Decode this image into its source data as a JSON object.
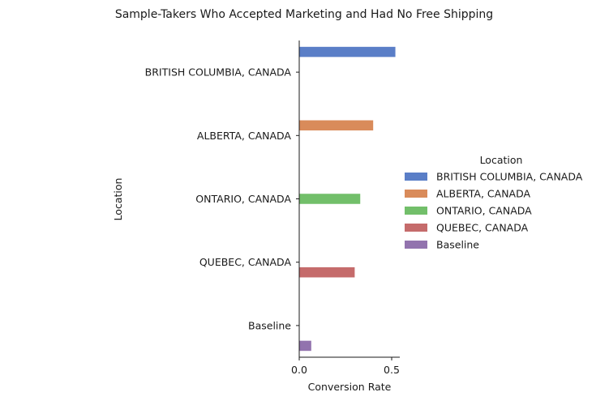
{
  "chart_data": {
    "type": "bar",
    "orientation": "horizontal",
    "title": "Sample-Takers Who Accepted Marketing and Had No Free Shipping",
    "xlabel": "Conversion Rate",
    "ylabel": "Location",
    "xlim": [
      0,
      0.55
    ],
    "xticks": [
      "0.0",
      "0.5"
    ],
    "xtick_values": [
      0,
      0.5
    ],
    "categories": [
      "BRITISH COLUMBIA, CANADA",
      "ALBERTA, CANADA",
      "ONTARIO, CANADA",
      "QUEBEC, CANADA",
      "Baseline"
    ],
    "legend_title": "Location",
    "legend_position": "right",
    "grid": false,
    "series": [
      {
        "name": "BRITISH COLUMBIA, CANADA",
        "color": "#5a7ec7",
        "values": [
          0.52,
          0,
          0,
          0,
          0
        ]
      },
      {
        "name": "ALBERTA, CANADA",
        "color": "#d98b5a",
        "values": [
          0,
          0.4,
          0,
          0,
          0
        ]
      },
      {
        "name": "ONTARIO, CANADA",
        "color": "#72bf6a",
        "values": [
          0,
          0,
          0.33,
          0,
          0
        ]
      },
      {
        "name": "QUEBEC, CANADA",
        "color": "#c56b6b",
        "values": [
          0,
          0,
          0,
          0.3,
          0
        ]
      },
      {
        "name": "Baseline",
        "color": "#9273ae",
        "values": [
          0,
          0,
          0,
          0,
          0.065
        ]
      }
    ]
  }
}
